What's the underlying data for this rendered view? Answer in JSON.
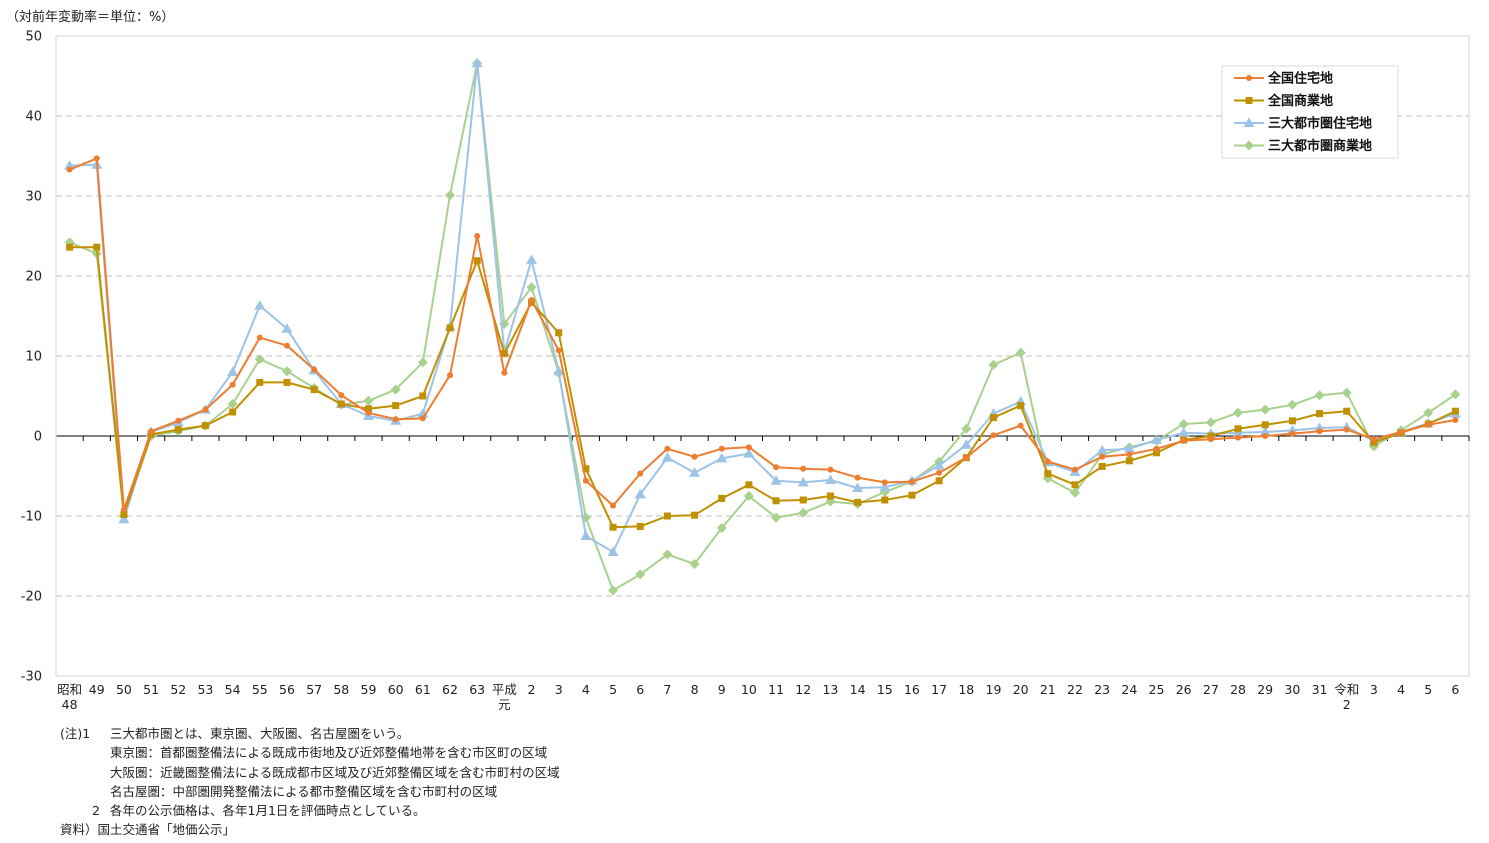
{
  "unit_label": "（対前年変動率＝単位：%）",
  "colors": {
    "national_residential": "#ED7D31",
    "national_commercial": "#BF9000",
    "metro_residential": "#9DC3E6",
    "metro_commercial": "#A9D18E",
    "grid": "#BFBFBF",
    "axis": "#000000"
  },
  "chart_data": {
    "type": "line",
    "title": "",
    "xlabel": "",
    "ylabel": "",
    "ylim": [
      -30,
      50
    ],
    "yticks": [
      -30,
      -20,
      -10,
      0,
      10,
      20,
      30,
      40,
      50
    ],
    "grid": true,
    "legend_position": "top-right",
    "categories": [
      "昭和\n48",
      "49",
      "50",
      "51",
      "52",
      "53",
      "54",
      "55",
      "56",
      "57",
      "58",
      "59",
      "60",
      "61",
      "62",
      "63",
      "平成\n元",
      "2",
      "3",
      "4",
      "5",
      "6",
      "7",
      "8",
      "9",
      "10",
      "11",
      "12",
      "13",
      "14",
      "15",
      "16",
      "17",
      "18",
      "19",
      "20",
      "21",
      "22",
      "23",
      "24",
      "25",
      "26",
      "27",
      "28",
      "29",
      "30",
      "31",
      "令和\n2",
      "3",
      "4",
      "5",
      "6"
    ],
    "series": [
      {
        "name": "全国住宅地",
        "marker": "circle",
        "color_key": "national_residential",
        "values": [
          33.3,
          34.7,
          -9.2,
          0.6,
          1.9,
          3.3,
          6.4,
          12.3,
          11.3,
          8.3,
          5.1,
          2.9,
          2.1,
          2.2,
          7.6,
          25.0,
          7.9,
          17.0,
          10.7,
          -5.6,
          -8.7,
          -4.7,
          -1.6,
          -2.6,
          -1.6,
          -1.4,
          -3.9,
          -4.1,
          -4.2,
          -5.2,
          -5.8,
          -5.7,
          -4.6,
          -2.7,
          0.1,
          1.3,
          -3.2,
          -4.2,
          -2.6,
          -2.3,
          -1.6,
          -0.6,
          -0.4,
          -0.2,
          0.0,
          0.3,
          0.6,
          0.8,
          -0.4,
          0.5,
          1.4,
          2.0
        ]
      },
      {
        "name": "全国商業地",
        "marker": "square",
        "color_key": "national_commercial",
        "values": [
          23.6,
          23.6,
          -9.8,
          0.2,
          0.8,
          1.3,
          3.0,
          6.7,
          6.7,
          5.8,
          4.0,
          3.4,
          3.8,
          5.0,
          13.5,
          21.9,
          10.3,
          16.7,
          12.9,
          -4.1,
          -11.4,
          -11.3,
          -10.0,
          -9.9,
          -7.8,
          -6.1,
          -8.1,
          -8.0,
          -7.5,
          -8.3,
          -8.0,
          -7.4,
          -5.6,
          -2.7,
          2.3,
          3.8,
          -4.7,
          -6.1,
          -3.8,
          -3.1,
          -2.1,
          -0.5,
          0.0,
          0.9,
          1.4,
          1.9,
          2.8,
          3.1,
          -0.8,
          0.4,
          1.5,
          3.1
        ]
      },
      {
        "name": "三大都市圏住宅地",
        "marker": "triangle",
        "color_key": "metro_residential",
        "values": [
          33.8,
          33.9,
          -10.4,
          0.5,
          1.7,
          3.3,
          8.0,
          16.3,
          13.4,
          8.2,
          4.0,
          2.5,
          1.9,
          2.8,
          13.7,
          46.6,
          10.5,
          22.0,
          8.1,
          -12.5,
          -14.5,
          -7.3,
          -2.7,
          -4.6,
          -2.8,
          -2.2,
          -5.6,
          -5.8,
          -5.5,
          -6.5,
          -6.4,
          -5.6,
          -3.7,
          -1.1,
          2.8,
          4.3,
          -3.3,
          -4.5,
          -1.8,
          -1.6,
          -0.5,
          0.4,
          0.3,
          0.4,
          0.5,
          0.7,
          1.0,
          1.1,
          -0.6,
          0.5,
          1.6,
          2.8
        ]
      },
      {
        "name": "三大都市圏商業地",
        "marker": "diamond",
        "color_key": "metro_commercial",
        "values": [
          24.2,
          22.8,
          -10.0,
          0.0,
          0.6,
          1.3,
          4.0,
          9.6,
          8.1,
          6.0,
          3.9,
          4.4,
          5.8,
          9.2,
          30.1,
          46.6,
          14.0,
          18.6,
          7.9,
          -10.2,
          -19.3,
          -17.3,
          -14.8,
          -16.0,
          -11.5,
          -7.5,
          -10.2,
          -9.6,
          -8.2,
          -8.5,
          -7.0,
          -5.7,
          -3.2,
          0.9,
          8.9,
          10.4,
          -5.3,
          -7.1,
          -2.3,
          -1.4,
          -0.6,
          1.5,
          1.7,
          2.9,
          3.3,
          3.9,
          5.1,
          5.4,
          -1.3,
          0.7,
          2.9,
          5.2
        ]
      }
    ]
  },
  "notes": {
    "note1_num": "(注)1",
    "note1_text": "三大都市圏とは、東京圏、大阪圏、名古屋圏をいう。",
    "tokyo": "東京圏：首都圏整備法による既成市街地及び近郊整備地帯を含む市区町の区域",
    "osaka": "大阪圏：近畿圏整備法による既成都市区域及び近郊整備区域を含む市町村の区域",
    "nagoya": "名古屋圏：中部圏開発整備法による都市整備区域を含む市町村の区域",
    "note2_num": "2",
    "note2_text": "各年の公示価格は、各年1月1日を評価時点としている。",
    "source": "資料）国土交通省「地価公示」"
  }
}
